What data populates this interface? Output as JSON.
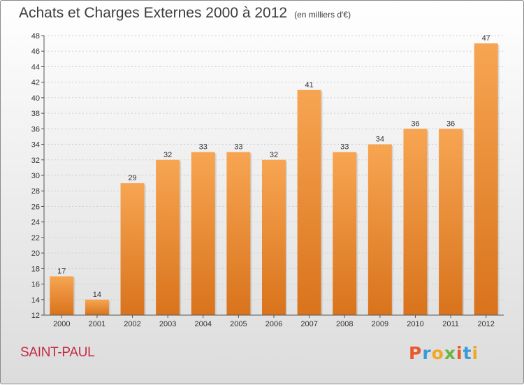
{
  "chart_data": {
    "type": "bar",
    "title": "Achats et Charges Externes 2000 à 2012",
    "unit": "(en milliers d'€)",
    "categories": [
      "2000",
      "2001",
      "2002",
      "2003",
      "2004",
      "2005",
      "2006",
      "2007",
      "2008",
      "2009",
      "2010",
      "2011",
      "2012"
    ],
    "values": [
      17,
      14,
      29,
      32,
      33,
      33,
      32,
      41,
      33,
      34,
      36,
      36,
      47
    ],
    "ylim": [
      12,
      48
    ],
    "yticks": [
      12,
      14,
      16,
      18,
      20,
      22,
      24,
      26,
      28,
      30,
      32,
      34,
      36,
      38,
      40,
      42,
      44,
      46,
      48
    ],
    "grid": true,
    "bar_color_top": "#f7a552",
    "bar_color_bottom": "#d9731c"
  },
  "footer": {
    "place": "SAINT-PAUL",
    "logo": "Proxiti",
    "logo_colors": [
      "#e8582b",
      "#3a9bd8",
      "#f2a623",
      "#6bb43f",
      "#e8582b",
      "#3a9bd8",
      "#f2a623"
    ]
  }
}
